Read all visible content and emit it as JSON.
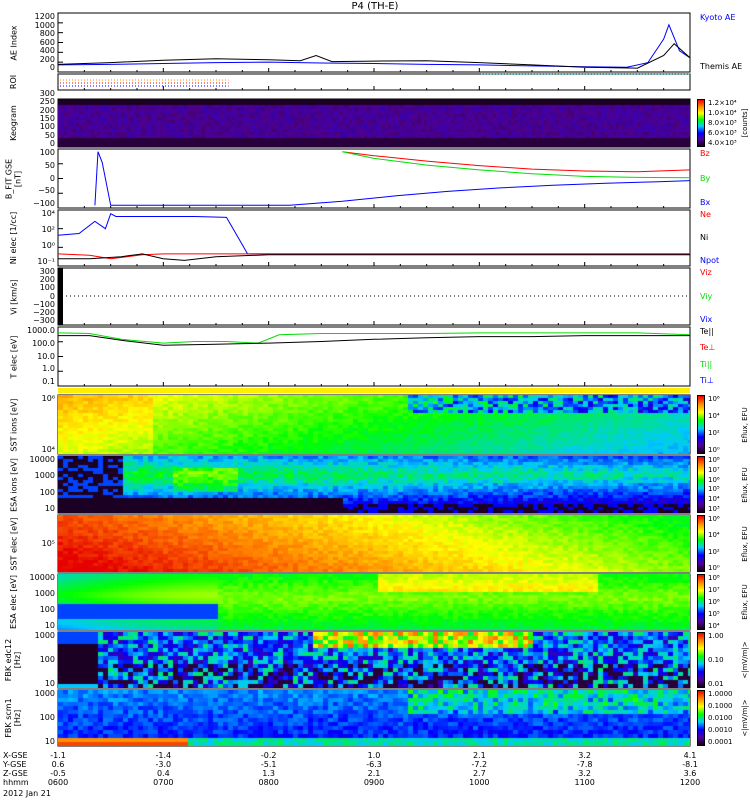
{
  "title": "P4 (TH-E)",
  "date": "2012 Jan 21",
  "colors": {
    "kyoto": "#0000ff",
    "themis": "#000000",
    "red": "#ff0000",
    "green": "#00dd00",
    "blue": "#0000ff",
    "cyan": "#00ffff",
    "orange": "#ff8800"
  },
  "panels": [
    {
      "id": "ae",
      "ylabel": "AE Index",
      "ticks": [
        "1200",
        "1000",
        "800",
        "600",
        "400",
        "200",
        "0"
      ],
      "legend": [
        {
          "text": "Kyoto AE",
          "color": "#0000ff"
        },
        {
          "text": "Themis AE",
          "color": "#000000"
        }
      ]
    },
    {
      "id": "roi",
      "ylabel": "ROI",
      "ticks": [],
      "legend": []
    },
    {
      "id": "keo",
      "ylabel": "Keogram",
      "ticks": [
        "300",
        "250",
        "200",
        "150",
        "100",
        "50",
        "0"
      ],
      "colorbar": {
        "labels": [
          "1.2×10⁴",
          "1.0×10⁴",
          "8.0×10³",
          "6.0×10³",
          "4.0×10³"
        ],
        "unit": "[counts]"
      }
    },
    {
      "id": "b",
      "ylabel": "B_FIT GSE [nT]",
      "ticks": [
        "100",
        "50",
        "0",
        "−50",
        "−100"
      ],
      "legend": [
        {
          "text": "Bz",
          "color": "#ff0000"
        },
        {
          "text": "By",
          "color": "#00dd00"
        },
        {
          "text": "Bx",
          "color": "#0000ff"
        }
      ]
    },
    {
      "id": "ni",
      "ylabel": "Ni elec [1/cc]",
      "ticks": [
        "10⁴",
        "10²",
        "10⁰",
        "10⁻¹"
      ],
      "legend": [
        {
          "text": "Ne",
          "color": "#ff0000"
        },
        {
          "text": "Ni",
          "color": "#000000"
        },
        {
          "text": "Npot",
          "color": "#0000ff"
        }
      ]
    },
    {
      "id": "vi",
      "ylabel": "Vi [km/s]",
      "ticks": [
        "300",
        "200",
        "100",
        "0",
        "−100",
        "−200",
        "−300"
      ],
      "legend": [
        {
          "text": "Viz",
          "color": "#ff0000"
        },
        {
          "text": "Viy",
          "color": "#00dd00"
        },
        {
          "text": "Vix",
          "color": "#0000ff"
        }
      ]
    },
    {
      "id": "t",
      "ylabel": "T elec [eV]",
      "ticks": [
        "1000.0",
        "100.0",
        "10.0",
        "1.0",
        "0.1"
      ],
      "legend": [
        {
          "text": "Te||",
          "color": "#000000"
        },
        {
          "text": "Te⊥",
          "color": "#ff0000"
        },
        {
          "text": "Ti||",
          "color": "#00dd00"
        },
        {
          "text": "Ti⊥",
          "color": "#0000ff"
        }
      ]
    },
    {
      "id": "ssti",
      "ylabel": "SST ions [eV]",
      "ticks": [
        "10⁶",
        "10⁴"
      ],
      "colorbar": {
        "labels": [
          "10⁶",
          "10⁴",
          "10²",
          "10⁰"
        ],
        "unit": "Eflux, EFU"
      }
    },
    {
      "id": "esai",
      "ylabel": "ESA ions [eV]",
      "ticks": [
        "10000",
        "1000",
        "100",
        "10"
      ],
      "colorbar": {
        "labels": [
          "10⁸",
          "10⁷",
          "10⁶",
          "10⁵",
          "10⁴",
          "10³"
        ],
        "unit": "Eflux, EFU"
      }
    },
    {
      "id": "sste",
      "ylabel": "SST elec [eV]",
      "ticks": [
        "10⁵"
      ],
      "colorbar": {
        "labels": [
          "10⁶",
          "10⁴",
          "10²",
          "10⁰"
        ],
        "unit": "Eflux, EFU"
      }
    },
    {
      "id": "esae",
      "ylabel": "ESA elec [eV]",
      "ticks": [
        "10000",
        "1000",
        "100",
        "10"
      ],
      "colorbar": {
        "labels": [
          "10⁸",
          "10⁷",
          "10⁶",
          "10⁵",
          "10⁴"
        ],
        "unit": "Eflux, EFU"
      }
    },
    {
      "id": "fbke",
      "ylabel": "FBK edc12 [Hz]",
      "ticks": [
        "1000",
        "100",
        "10"
      ],
      "colorbar": {
        "labels": [
          "1.00",
          "0.10",
          "0.01"
        ],
        "unit": "<|mV/m|>"
      }
    },
    {
      "id": "fbks",
      "ylabel": "FBK scm1 [Hz]",
      "ticks": [
        "1000",
        "100",
        "10"
      ],
      "colorbar": {
        "labels": [
          "1.0000",
          "0.1000",
          "0.0100",
          "0.0010",
          "0.0001"
        ],
        "unit": "<|mV/m|>"
      }
    }
  ],
  "xaxis": {
    "row_labels": [
      "X-GSE",
      "Y-GSE",
      "Z-GSE",
      "hhmm"
    ],
    "columns": [
      [
        "-1.1",
        "0.6",
        "-0.5",
        "0600"
      ],
      [
        "-1.4",
        "-3.0",
        "0.4",
        "0700"
      ],
      [
        "-0.2",
        "-5.1",
        "1.3",
        "0800"
      ],
      [
        "1.0",
        "-6.3",
        "2.1",
        "0900"
      ],
      [
        "2.1",
        "-7.2",
        "2.7",
        "1000"
      ],
      [
        "3.2",
        "-7.8",
        "3.2",
        "1100"
      ],
      [
        "4.1",
        "-8.1",
        "3.6",
        "1200"
      ]
    ]
  },
  "chart_data": {
    "type": "line",
    "title": "P4 (TH-E)",
    "xlabel": "hhmm",
    "xlim": [
      6,
      12
    ],
    "series": [
      {
        "panel": "ae",
        "name": "Kyoto AE",
        "color": "#0000ff",
        "x": [
          6,
          6.5,
          7,
          7.5,
          8,
          8.5,
          9,
          9.5,
          10,
          10.5,
          11,
          11.4,
          11.6,
          11.75,
          11.8,
          11.9,
          12
        ],
        "y": [
          150,
          160,
          180,
          200,
          210,
          190,
          180,
          160,
          150,
          130,
          110,
          100,
          200,
          700,
          1000,
          450,
          300
        ]
      },
      {
        "panel": "ae",
        "name": "Themis AE",
        "color": "#000000",
        "x": [
          6,
          6.5,
          7,
          7.5,
          8,
          8.3,
          8.45,
          8.6,
          9,
          9.5,
          10,
          10.5,
          11,
          11.5,
          11.75,
          11.85,
          12
        ],
        "y": [
          160,
          200,
          250,
          280,
          260,
          240,
          350,
          220,
          230,
          240,
          200,
          150,
          100,
          80,
          350,
          600,
          300
        ]
      },
      {
        "panel": "b",
        "name": "Bz",
        "color": "#ff0000",
        "ylim": [
          -110,
          110
        ],
        "x": [
          8.7,
          9,
          9.5,
          10,
          10.5,
          11,
          11.5,
          12
        ],
        "y": [
          100,
          85,
          65,
          48,
          35,
          28,
          25,
          32
        ]
      },
      {
        "panel": "b",
        "name": "By",
        "color": "#00dd00",
        "ylim": [
          -110,
          110
        ],
        "x": [
          8.7,
          9,
          9.5,
          10,
          10.5,
          11,
          11.5,
          12
        ],
        "y": [
          100,
          75,
          50,
          32,
          18,
          8,
          4,
          3
        ]
      },
      {
        "panel": "b",
        "name": "Bx",
        "color": "#0000ff",
        "ylim": [
          -110,
          110
        ],
        "x": [
          6.35,
          6.38,
          6.42,
          6.5,
          8.2,
          8.7,
          9.2,
          9.7,
          10.2,
          10.7,
          11.2,
          11.7,
          12
        ],
        "y": [
          -100,
          100,
          60,
          -100,
          -100,
          -85,
          -65,
          -48,
          -35,
          -25,
          -18,
          -12,
          -8
        ]
      },
      {
        "panel": "ni",
        "name": "Npot",
        "color": "#0000ff",
        "log": true,
        "ylim": [
          0.05,
          50000
        ],
        "x": [
          6,
          6.2,
          6.35,
          6.45,
          6.5,
          6.55,
          7,
          7.3,
          7.6,
          7.8,
          8.5,
          12
        ],
        "y": [
          100,
          150,
          3000,
          500,
          20000,
          10000,
          10000,
          10000,
          8000,
          1,
          1,
          1
        ]
      },
      {
        "panel": "ni",
        "name": "Ne",
        "color": "#ff0000",
        "log": true,
        "ylim": [
          0.05,
          50000
        ],
        "x": [
          6,
          6.3,
          6.5,
          6.8,
          7,
          7.5,
          8,
          9,
          10,
          11,
          12
        ],
        "y": [
          1,
          0.7,
          0.3,
          0.8,
          1,
          1,
          1,
          1,
          1,
          1,
          1
        ]
      },
      {
        "panel": "ni",
        "name": "Ni",
        "color": "#000000",
        "log": true,
        "ylim": [
          0.05,
          50000
        ],
        "x": [
          6,
          6.3,
          6.6,
          6.8,
          7,
          7.2,
          7.5,
          8,
          9,
          10,
          11,
          12
        ],
        "y": [
          0.3,
          0.3,
          0.5,
          1,
          0.3,
          0.2,
          0.5,
          0.8,
          0.8,
          0.8,
          0.8,
          0.8
        ]
      },
      {
        "panel": "t",
        "name": "Ti||",
        "color": "#00dd00",
        "log": true,
        "ylim": [
          0.05,
          3000
        ],
        "x": [
          6,
          6.3,
          6.6,
          7,
          7.3,
          7.6,
          7.9,
          8.1,
          8.5,
          9,
          9.5,
          10,
          10.5,
          11,
          11.5,
          12
        ],
        "y": [
          1000,
          900,
          300,
          150,
          200,
          200,
          150,
          700,
          900,
          900,
          900,
          1000,
          1000,
          1000,
          1000,
          700
        ]
      },
      {
        "panel": "t",
        "name": "Te||",
        "color": "#000000",
        "log": true,
        "ylim": [
          0.05,
          3000
        ],
        "x": [
          6,
          6.3,
          6.6,
          7,
          7.5,
          8,
          8.5,
          9,
          9.5,
          10,
          10.5,
          11,
          11.5,
          12
        ],
        "y": [
          600,
          600,
          250,
          100,
          120,
          150,
          200,
          300,
          400,
          500,
          500,
          600,
          600,
          600
        ]
      }
    ]
  }
}
